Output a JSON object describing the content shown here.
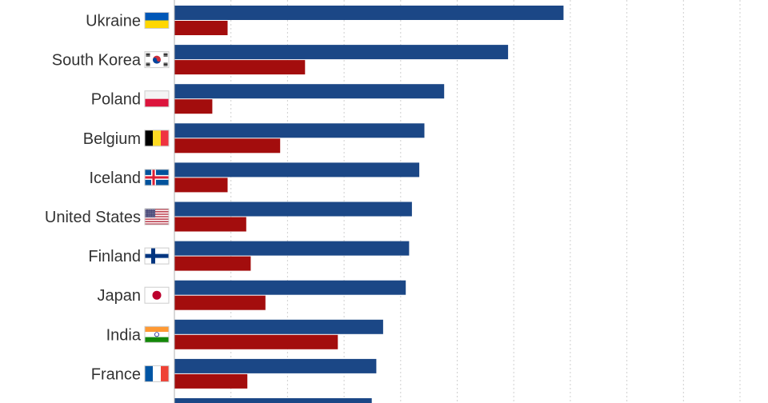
{
  "colors": {
    "series_primary": "#1b4786",
    "series_secondary": "#a30d0d",
    "grid": "#cfcfcf",
    "axis": "#b0b0b0",
    "label_text": "#333333"
  },
  "chart_data": {
    "type": "bar",
    "orientation": "horizontal",
    "grid": true,
    "categories": [
      "Ukraine",
      "South Korea",
      "Poland",
      "Belgium",
      "Iceland",
      "United States",
      "Finland",
      "Japan",
      "India",
      "France",
      ""
    ],
    "category_icons": [
      "flag-ukraine-icon",
      "flag-south-korea-icon",
      "flag-poland-icon",
      "flag-belgium-icon",
      "flag-iceland-icon",
      "flag-united-states-icon",
      "flag-finland-icon",
      "flag-japan-icon",
      "flag-india-icon",
      "flag-france-icon",
      ""
    ],
    "series": [
      {
        "values": [
          68.8,
          59.0,
          47.7,
          44.2,
          43.3,
          42.0,
          41.5,
          40.9,
          36.9,
          35.7,
          34.9
        ]
      },
      {
        "values": [
          9.4,
          23.1,
          6.7,
          18.7,
          9.4,
          12.7,
          13.5,
          16.1,
          28.9,
          12.9,
          null
        ]
      }
    ],
    "xlim": [
      0,
      100
    ],
    "gridlines": [
      10,
      20,
      30,
      40,
      50,
      60,
      70,
      80,
      90,
      100
    ]
  }
}
